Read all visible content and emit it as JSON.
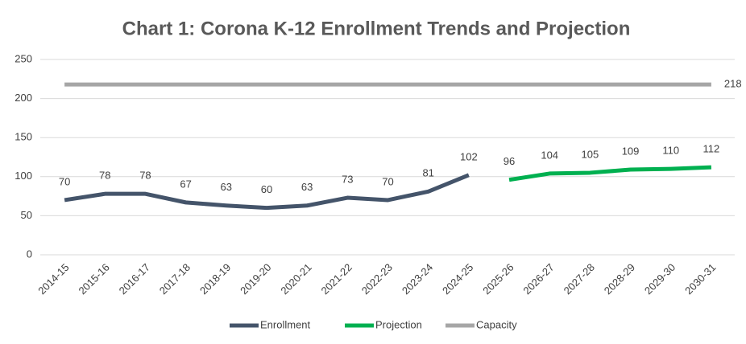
{
  "chart_data": {
    "type": "line",
    "title": "Chart 1: Corona K-12 Enrollment Trends and Projection",
    "categories": [
      "2014-15",
      "2015-16",
      "2016-17",
      "2017-18",
      "2018-19",
      "2019-20",
      "2020-21",
      "2021-22",
      "2022-23",
      "2023-24",
      "2024-25",
      "2025-26",
      "2026-27",
      "2027-28",
      "2028-29",
      "2029-30",
      "2030-31"
    ],
    "series": [
      {
        "name": "Enrollment",
        "color": "#44546a",
        "data_labels": "all",
        "values": [
          70,
          78,
          78,
          67,
          63,
          60,
          63,
          73,
          70,
          81,
          102,
          null,
          null,
          null,
          null,
          null,
          null
        ]
      },
      {
        "name": "Projection",
        "color": "#00b050",
        "data_labels": "all",
        "values": [
          null,
          null,
          null,
          null,
          null,
          null,
          null,
          null,
          null,
          null,
          null,
          96,
          104,
          105,
          109,
          110,
          112
        ]
      },
      {
        "name": "Capacity",
        "color": "#a6a6a6",
        "data_labels": "last",
        "values": [
          218,
          218,
          218,
          218,
          218,
          218,
          218,
          218,
          218,
          218,
          218,
          218,
          218,
          218,
          218,
          218,
          218
        ]
      }
    ],
    "ylim": [
      0,
      250
    ],
    "yticks": [
      0,
      50,
      100,
      150,
      200,
      250
    ],
    "grid": true,
    "legend": "bottom"
  }
}
